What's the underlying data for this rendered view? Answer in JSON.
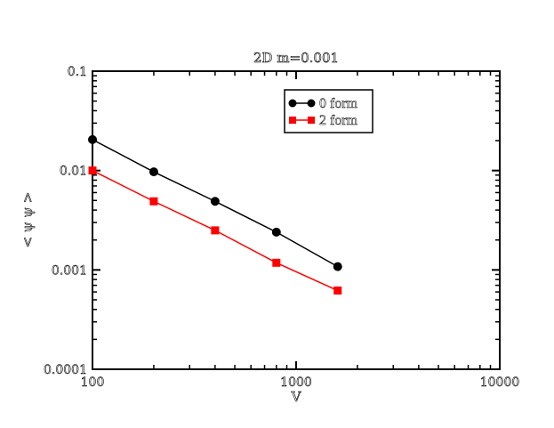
{
  "chart_data": {
    "type": "line",
    "title": "2D m=0.001",
    "xlabel": "V",
    "ylabel": "< ψ ψ >",
    "xscale": "log",
    "yscale": "log",
    "xlim": [
      100,
      10000
    ],
    "ylim": [
      0.0001,
      0.1
    ],
    "xticks": [
      "100",
      "1000",
      "10000"
    ],
    "yticks": [
      "0.1",
      "0.01",
      "0.001",
      "0.0001"
    ],
    "legend_position": "top-right",
    "grid": false,
    "series": [
      {
        "name": "0 form",
        "color": "#000000",
        "marker": "circle",
        "x": [
          100,
          200,
          400,
          800,
          1600
        ],
        "y": [
          0.0205,
          0.0097,
          0.0049,
          0.0024,
          0.00108
        ]
      },
      {
        "name": "2 form",
        "color": "#ff0000",
        "marker": "square",
        "x": [
          100,
          200,
          400,
          800,
          1600
        ],
        "y": [
          0.01,
          0.0049,
          0.0025,
          0.00118,
          0.00062
        ]
      }
    ]
  }
}
